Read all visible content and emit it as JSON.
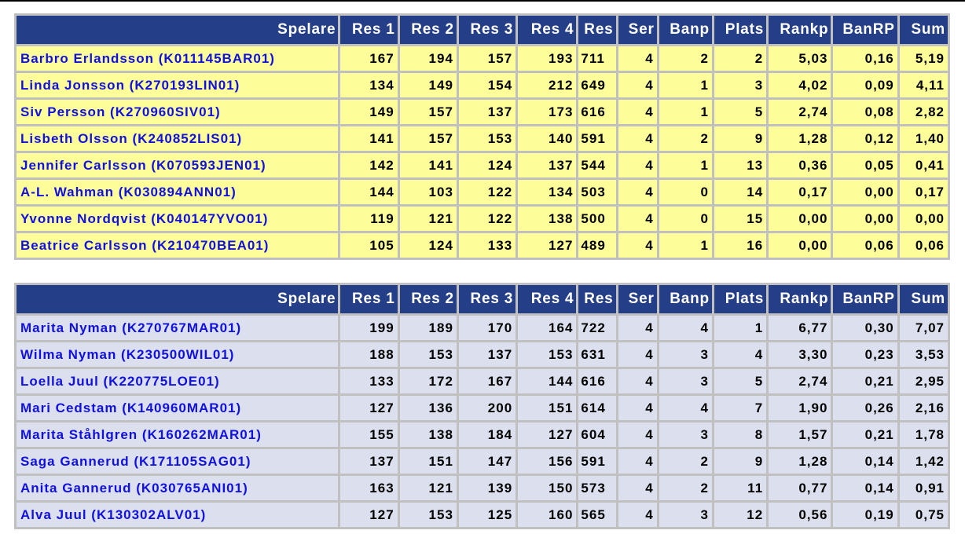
{
  "columns": [
    "Spelare",
    "Res 1",
    "Res 2",
    "Res 3",
    "Res 4",
    "Res",
    "Ser",
    "Banp",
    "Plats",
    "Rankp",
    "BanRP",
    "Sum"
  ],
  "colors": {
    "header_bg": "#253e88",
    "table1_row_bg": "#fdfd99",
    "table2_row_bg": "#dce0ee",
    "name_link": "#1010e0",
    "border": "#c0c0c0"
  },
  "tables": [
    {
      "rows": [
        [
          "Barbro Erlandsson (K011145BAR01)",
          "167",
          "194",
          "157",
          "193",
          "711",
          "4",
          "2",
          "2",
          "5,03",
          "0,16",
          "5,19"
        ],
        [
          "Linda Jonsson (K270193LIN01)",
          "134",
          "149",
          "154",
          "212",
          "649",
          "4",
          "1",
          "3",
          "4,02",
          "0,09",
          "4,11"
        ],
        [
          "Siv Persson (K270960SIV01)",
          "149",
          "157",
          "137",
          "173",
          "616",
          "4",
          "1",
          "5",
          "2,74",
          "0,08",
          "2,82"
        ],
        [
          "Lisbeth Olsson (K240852LIS01)",
          "141",
          "157",
          "153",
          "140",
          "591",
          "4",
          "2",
          "9",
          "1,28",
          "0,12",
          "1,40"
        ],
        [
          "Jennifer Carlsson (K070593JEN01)",
          "142",
          "141",
          "124",
          "137",
          "544",
          "4",
          "1",
          "13",
          "0,36",
          "0,05",
          "0,41"
        ],
        [
          "A-L. Wahman (K030894ANN01)",
          "144",
          "103",
          "122",
          "134",
          "503",
          "4",
          "0",
          "14",
          "0,17",
          "0,00",
          "0,17"
        ],
        [
          "Yvonne Nordqvist (K040147YVO01)",
          "119",
          "121",
          "122",
          "138",
          "500",
          "4",
          "0",
          "15",
          "0,00",
          "0,00",
          "0,00"
        ],
        [
          "Beatrice Carlsson (K210470BEA01)",
          "105",
          "124",
          "133",
          "127",
          "489",
          "4",
          "1",
          "16",
          "0,00",
          "0,06",
          "0,06"
        ]
      ]
    },
    {
      "rows": [
        [
          "Marita Nyman (K270767MAR01)",
          "199",
          "189",
          "170",
          "164",
          "722",
          "4",
          "4",
          "1",
          "6,77",
          "0,30",
          "7,07"
        ],
        [
          "Wilma Nyman (K230500WIL01)",
          "188",
          "153",
          "137",
          "153",
          "631",
          "4",
          "3",
          "4",
          "3,30",
          "0,23",
          "3,53"
        ],
        [
          "Loella Juul (K220775LOE01)",
          "133",
          "172",
          "167",
          "144",
          "616",
          "4",
          "3",
          "5",
          "2,74",
          "0,21",
          "2,95"
        ],
        [
          "Mari Cedstam (K140960MAR01)",
          "127",
          "136",
          "200",
          "151",
          "614",
          "4",
          "4",
          "7",
          "1,90",
          "0,26",
          "2,16"
        ],
        [
          "Marita Ståhlgren (K160262MAR01)",
          "155",
          "138",
          "184",
          "127",
          "604",
          "4",
          "3",
          "8",
          "1,57",
          "0,21",
          "1,78"
        ],
        [
          "Saga Gannerud (K171105SAG01)",
          "137",
          "151",
          "147",
          "156",
          "591",
          "4",
          "2",
          "9",
          "1,28",
          "0,14",
          "1,42"
        ],
        [
          "Anita Gannerud (K030765ANI01)",
          "163",
          "121",
          "139",
          "150",
          "573",
          "4",
          "2",
          "11",
          "0,77",
          "0,14",
          "0,91"
        ],
        [
          "Alva Juul (K130302ALV01)",
          "127",
          "153",
          "125",
          "160",
          "565",
          "4",
          "3",
          "12",
          "0,56",
          "0,19",
          "0,75"
        ]
      ]
    }
  ]
}
